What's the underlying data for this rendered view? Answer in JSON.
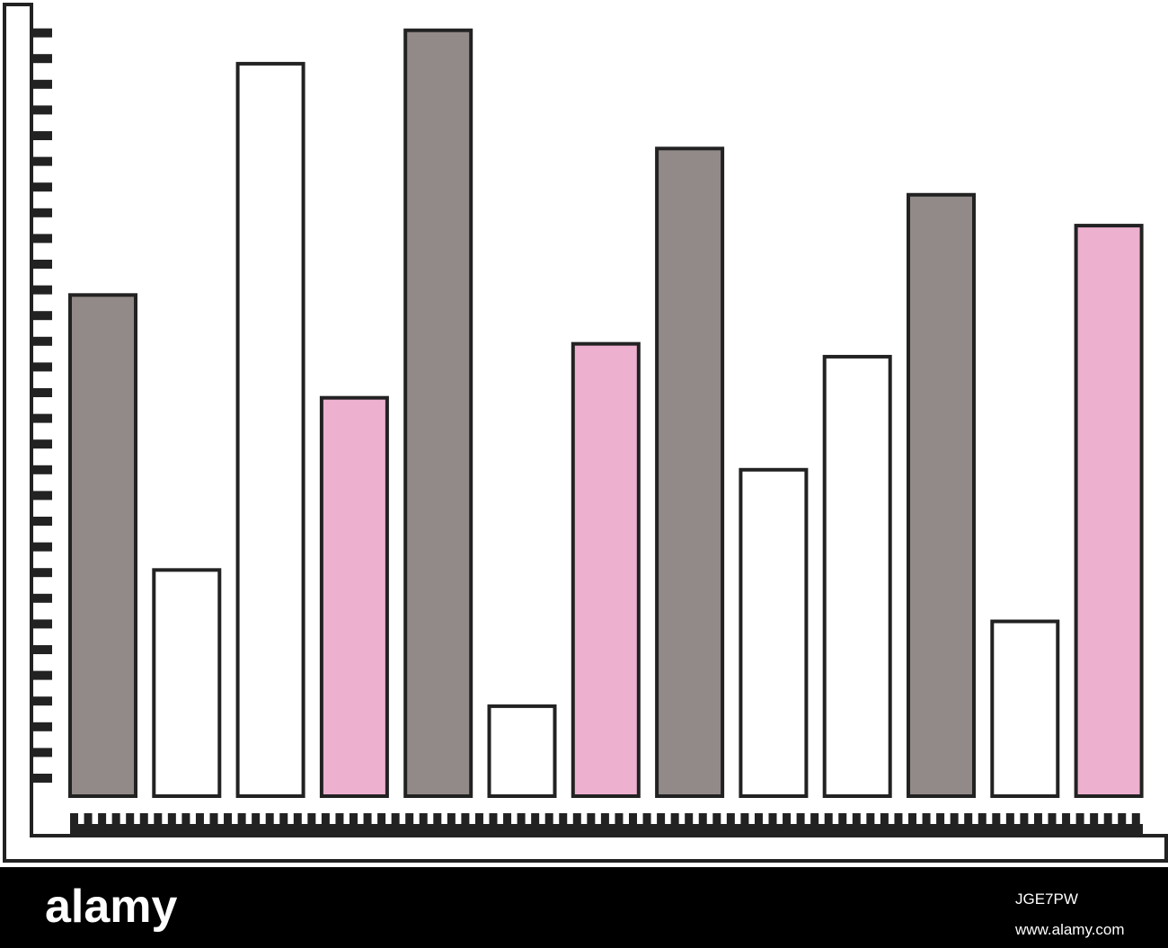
{
  "chart_data": {
    "type": "bar",
    "categories": [
      null,
      null,
      null,
      null,
      null,
      null,
      null,
      null,
      null,
      null,
      null,
      null,
      null
    ],
    "values": [
      19.5,
      8.8,
      28.5,
      15.5,
      29.8,
      3.5,
      17.6,
      25.2,
      12.7,
      17.1,
      23.4,
      6.8,
      22.2
    ],
    "colors": [
      "#928a88",
      "#ffffff",
      "#ffffff",
      "#eeb0cf",
      "#928a88",
      "#ffffff",
      "#eeb0cf",
      "#928a88",
      "#ffffff",
      "#ffffff",
      "#928a88",
      "#ffffff",
      "#eeb0cf"
    ],
    "ylim": [
      0,
      30
    ]
  },
  "watermark": {
    "logo": "alamy",
    "image_id": "JGE7PW",
    "url": "www.alamy.com"
  }
}
